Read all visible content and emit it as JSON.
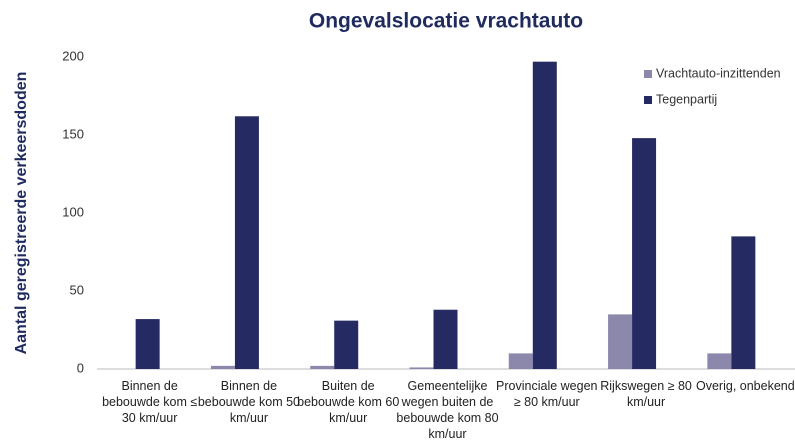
{
  "chart_data": {
    "type": "bar",
    "title": "Ongevalslocatie vrachtauto",
    "y_label": "Aantal geregistreerde verkeersdoden",
    "categories": [
      "Binnen de bebouwde kom ≤ 30 km/uur",
      "Binnen de bebouwde kom 50 km/uur",
      "Buiten de bebouwde kom 60 km/uur",
      "Gemeentelijke wegen buiten de bebouwde kom 80 km/uur",
      "Provinciale wegen ≥ 80 km/uur",
      "Rijkswegen ≥ 80 km/uur",
      "Overig, onbekend"
    ],
    "series": [
      {
        "name": "Vrachtauto-inzittenden",
        "color": "#8c88ab",
        "values": [
          0,
          2,
          2,
          1,
          10,
          35,
          10
        ]
      },
      {
        "name": "Tegenpartij",
        "color": "#262a63",
        "values": [
          32,
          162,
          31,
          38,
          197,
          148,
          85
        ]
      }
    ],
    "ylim": [
      0,
      200
    ],
    "yticks": [
      0,
      50,
      100,
      150,
      200
    ],
    "grid": false,
    "legend": "top-right"
  }
}
